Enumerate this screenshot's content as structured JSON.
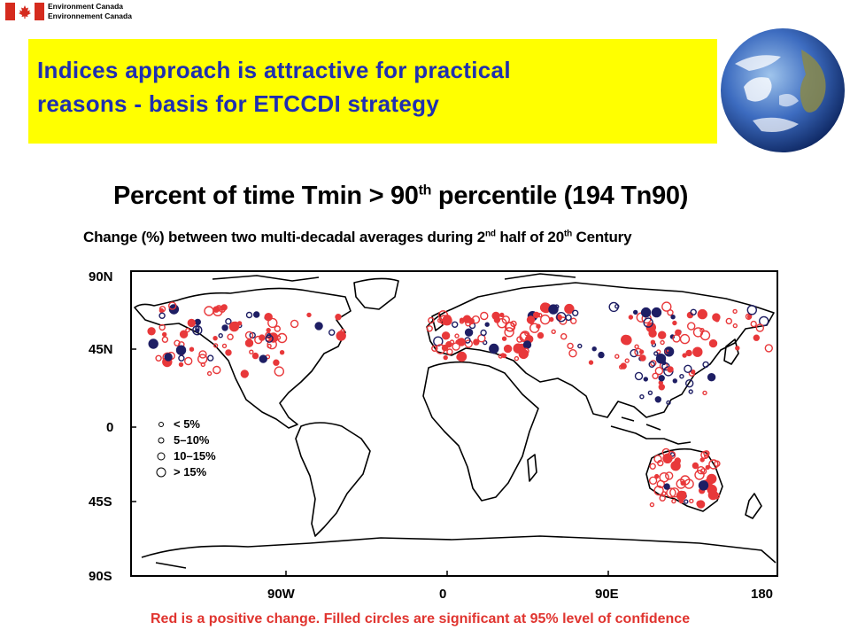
{
  "header": {
    "agency_en": "Environment Canada",
    "agency_fr": "Environnement Canada",
    "flag_icon": "canada-flag-icon",
    "globe_icon": "earth-globe-icon"
  },
  "banner": {
    "line1": "Indices approach is attractive for practical",
    "line2": "reasons - basis for ETCCDI strategy",
    "background": "#ffff00",
    "text_color": "#1f2fb0"
  },
  "chart": {
    "title_pre": "Percent of time Tmin > 90",
    "title_sup": "th",
    "title_post": " percentile (194 Tn90)",
    "subtitle_pre": "Change (%) between two multi-decadal averages during 2",
    "subtitle_sup": "nd",
    "subtitle_post": " half of 20",
    "subtitle_sup2": "th",
    "subtitle_end": " Century",
    "y_ticks": [
      "90N",
      "45N",
      "0",
      "45S",
      "90S"
    ],
    "x_ticks": [
      "90W",
      "0",
      "90E",
      "180"
    ],
    "legend": [
      "< 5%",
      "5–10%",
      "10–15%",
      "> 15%"
    ],
    "positive_color": "#e8383a",
    "negative_color": "#1e1e64",
    "footnote": "Red is a positive change. Filled circles are significant at 95% level of confidence"
  }
}
